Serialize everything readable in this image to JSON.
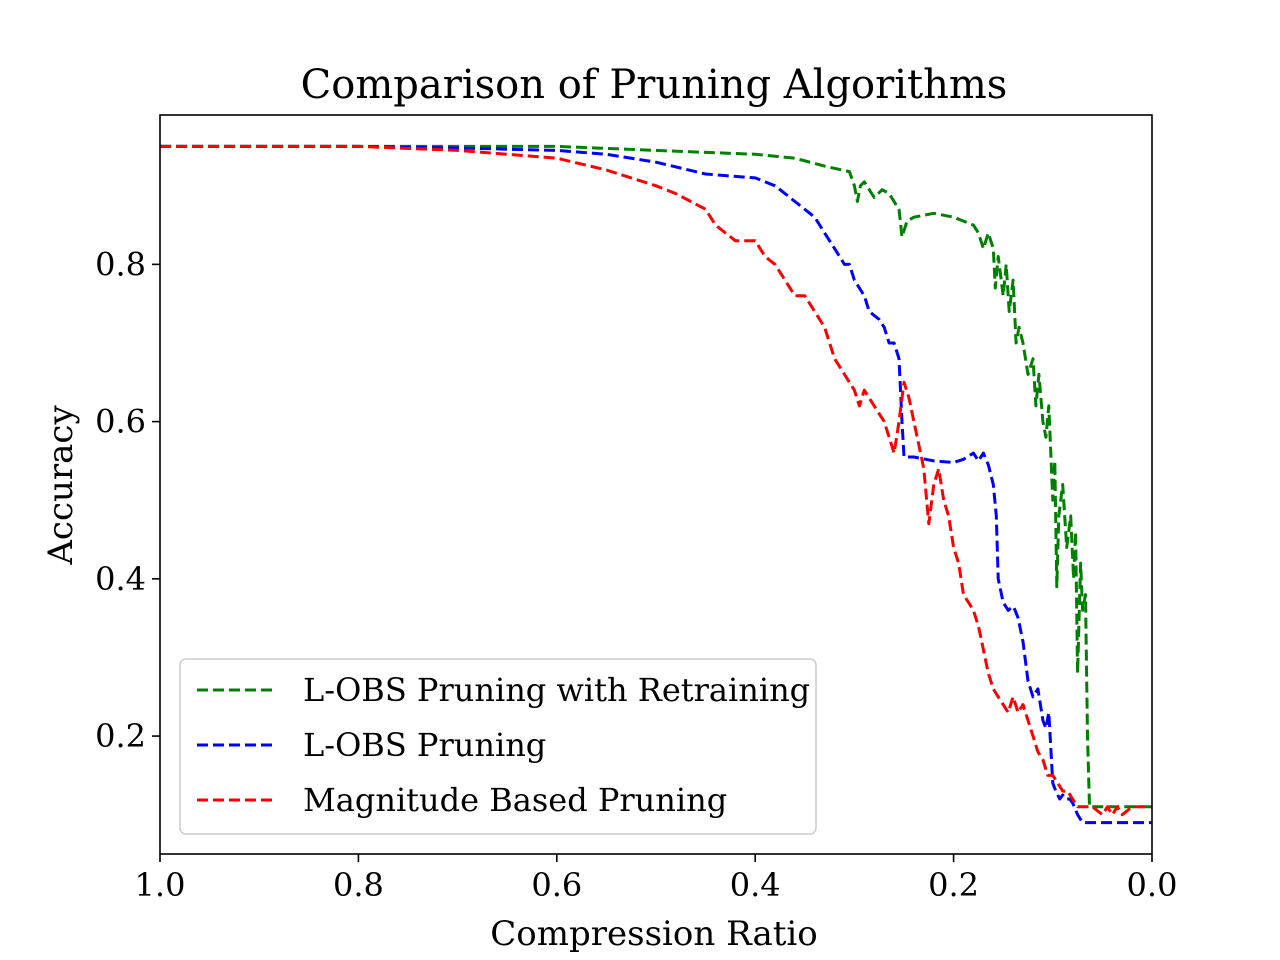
{
  "chart_data": {
    "type": "line",
    "title": "Comparison of Pruning Algorithms",
    "xlabel": "Compression Ratio",
    "ylabel": "Accuracy",
    "xlim": [
      1.0,
      0.0
    ],
    "ylim": [
      0.05,
      0.99
    ],
    "x_inverted": true,
    "xticks": [
      1.0,
      0.8,
      0.6,
      0.4,
      0.2,
      0.0
    ],
    "xtick_labels": [
      "1.0",
      "0.8",
      "0.6",
      "0.4",
      "0.2",
      "0.0"
    ],
    "yticks": [
      0.2,
      0.4,
      0.6,
      0.8
    ],
    "ytick_labels": [
      "0.2",
      "0.4",
      "0.6",
      "0.8"
    ],
    "grid": false,
    "legend_position": "lower-left",
    "series": [
      {
        "name": "L-OBS Pruning with Retraining",
        "color": "#008000",
        "line_style": "dashed",
        "x": [
          1.0,
          0.8,
          0.6,
          0.5,
          0.4,
          0.36,
          0.33,
          0.305,
          0.3,
          0.297,
          0.294,
          0.29,
          0.28,
          0.272,
          0.265,
          0.255,
          0.252,
          0.247,
          0.24,
          0.22,
          0.2,
          0.19,
          0.18,
          0.175,
          0.17,
          0.165,
          0.16,
          0.158,
          0.155,
          0.15,
          0.147,
          0.144,
          0.14,
          0.137,
          0.134,
          0.13,
          0.125,
          0.12,
          0.117,
          0.114,
          0.11,
          0.107,
          0.104,
          0.1,
          0.098,
          0.096,
          0.094,
          0.09,
          0.086,
          0.082,
          0.079,
          0.077,
          0.075,
          0.072,
          0.07,
          0.067,
          0.065,
          0.063,
          0.06,
          0.05,
          0.04,
          0.03,
          0.02,
          0.0
        ],
        "y": [
          0.95,
          0.95,
          0.95,
          0.945,
          0.94,
          0.935,
          0.925,
          0.918,
          0.9,
          0.88,
          0.9,
          0.905,
          0.885,
          0.895,
          0.89,
          0.87,
          0.835,
          0.855,
          0.86,
          0.865,
          0.86,
          0.855,
          0.85,
          0.84,
          0.82,
          0.84,
          0.82,
          0.77,
          0.81,
          0.76,
          0.8,
          0.74,
          0.78,
          0.7,
          0.72,
          0.7,
          0.66,
          0.68,
          0.62,
          0.66,
          0.6,
          0.58,
          0.62,
          0.5,
          0.55,
          0.39,
          0.48,
          0.52,
          0.44,
          0.48,
          0.4,
          0.46,
          0.28,
          0.42,
          0.36,
          0.38,
          0.2,
          0.11,
          0.11,
          0.11,
          0.11,
          0.11,
          0.11,
          0.11
        ]
      },
      {
        "name": "L-OBS Pruning",
        "color": "#0000ff",
        "line_style": "dashed",
        "x": [
          1.0,
          0.8,
          0.7,
          0.6,
          0.55,
          0.5,
          0.45,
          0.4,
          0.38,
          0.37,
          0.36,
          0.35,
          0.34,
          0.33,
          0.32,
          0.31,
          0.305,
          0.3,
          0.29,
          0.285,
          0.275,
          0.27,
          0.265,
          0.26,
          0.255,
          0.252,
          0.25,
          0.24,
          0.22,
          0.2,
          0.19,
          0.18,
          0.175,
          0.17,
          0.165,
          0.16,
          0.157,
          0.155,
          0.15,
          0.145,
          0.14,
          0.138,
          0.135,
          0.13,
          0.125,
          0.12,
          0.115,
          0.11,
          0.107,
          0.104,
          0.1,
          0.097,
          0.093,
          0.09,
          0.087,
          0.083,
          0.08,
          0.075,
          0.07,
          0.065,
          0.06,
          0.05,
          0.04,
          0.03,
          0.0
        ],
        "y": [
          0.95,
          0.95,
          0.948,
          0.945,
          0.94,
          0.93,
          0.915,
          0.91,
          0.9,
          0.89,
          0.88,
          0.87,
          0.86,
          0.84,
          0.82,
          0.8,
          0.8,
          0.78,
          0.76,
          0.74,
          0.73,
          0.72,
          0.7,
          0.7,
          0.68,
          0.6,
          0.555,
          0.555,
          0.55,
          0.548,
          0.552,
          0.56,
          0.55,
          0.56,
          0.545,
          0.52,
          0.48,
          0.4,
          0.37,
          0.36,
          0.365,
          0.36,
          0.35,
          0.32,
          0.27,
          0.25,
          0.26,
          0.22,
          0.21,
          0.23,
          0.14,
          0.13,
          0.12,
          0.125,
          0.12,
          0.12,
          0.115,
          0.1,
          0.09,
          0.09,
          0.09,
          0.09,
          0.09,
          0.09,
          0.09
        ]
      },
      {
        "name": "Magnitude Based Pruning",
        "color": "#ff0000",
        "line_style": "dashed",
        "x": [
          1.0,
          0.8,
          0.7,
          0.6,
          0.55,
          0.5,
          0.48,
          0.45,
          0.44,
          0.42,
          0.4,
          0.39,
          0.38,
          0.37,
          0.36,
          0.35,
          0.34,
          0.33,
          0.32,
          0.31,
          0.3,
          0.295,
          0.29,
          0.28,
          0.27,
          0.265,
          0.26,
          0.255,
          0.25,
          0.245,
          0.24,
          0.235,
          0.23,
          0.225,
          0.22,
          0.215,
          0.21,
          0.205,
          0.2,
          0.195,
          0.19,
          0.185,
          0.18,
          0.175,
          0.17,
          0.165,
          0.16,
          0.155,
          0.15,
          0.145,
          0.14,
          0.135,
          0.13,
          0.125,
          0.12,
          0.115,
          0.11,
          0.105,
          0.1,
          0.095,
          0.09,
          0.085,
          0.08,
          0.075,
          0.07,
          0.06,
          0.05,
          0.045,
          0.04,
          0.035,
          0.03,
          0.02,
          0.01,
          0.0
        ],
        "y": [
          0.95,
          0.95,
          0.945,
          0.935,
          0.92,
          0.9,
          0.89,
          0.87,
          0.85,
          0.83,
          0.83,
          0.81,
          0.8,
          0.78,
          0.76,
          0.76,
          0.74,
          0.72,
          0.68,
          0.66,
          0.64,
          0.62,
          0.64,
          0.62,
          0.6,
          0.58,
          0.56,
          0.6,
          0.65,
          0.63,
          0.6,
          0.57,
          0.54,
          0.47,
          0.52,
          0.54,
          0.5,
          0.48,
          0.44,
          0.42,
          0.38,
          0.37,
          0.36,
          0.34,
          0.31,
          0.28,
          0.26,
          0.25,
          0.24,
          0.23,
          0.25,
          0.23,
          0.24,
          0.22,
          0.2,
          0.18,
          0.17,
          0.15,
          0.15,
          0.14,
          0.13,
          0.13,
          0.12,
          0.11,
          0.11,
          0.11,
          0.1,
          0.11,
          0.1,
          0.11,
          0.1,
          0.11,
          0.11,
          0.11
        ]
      }
    ]
  }
}
